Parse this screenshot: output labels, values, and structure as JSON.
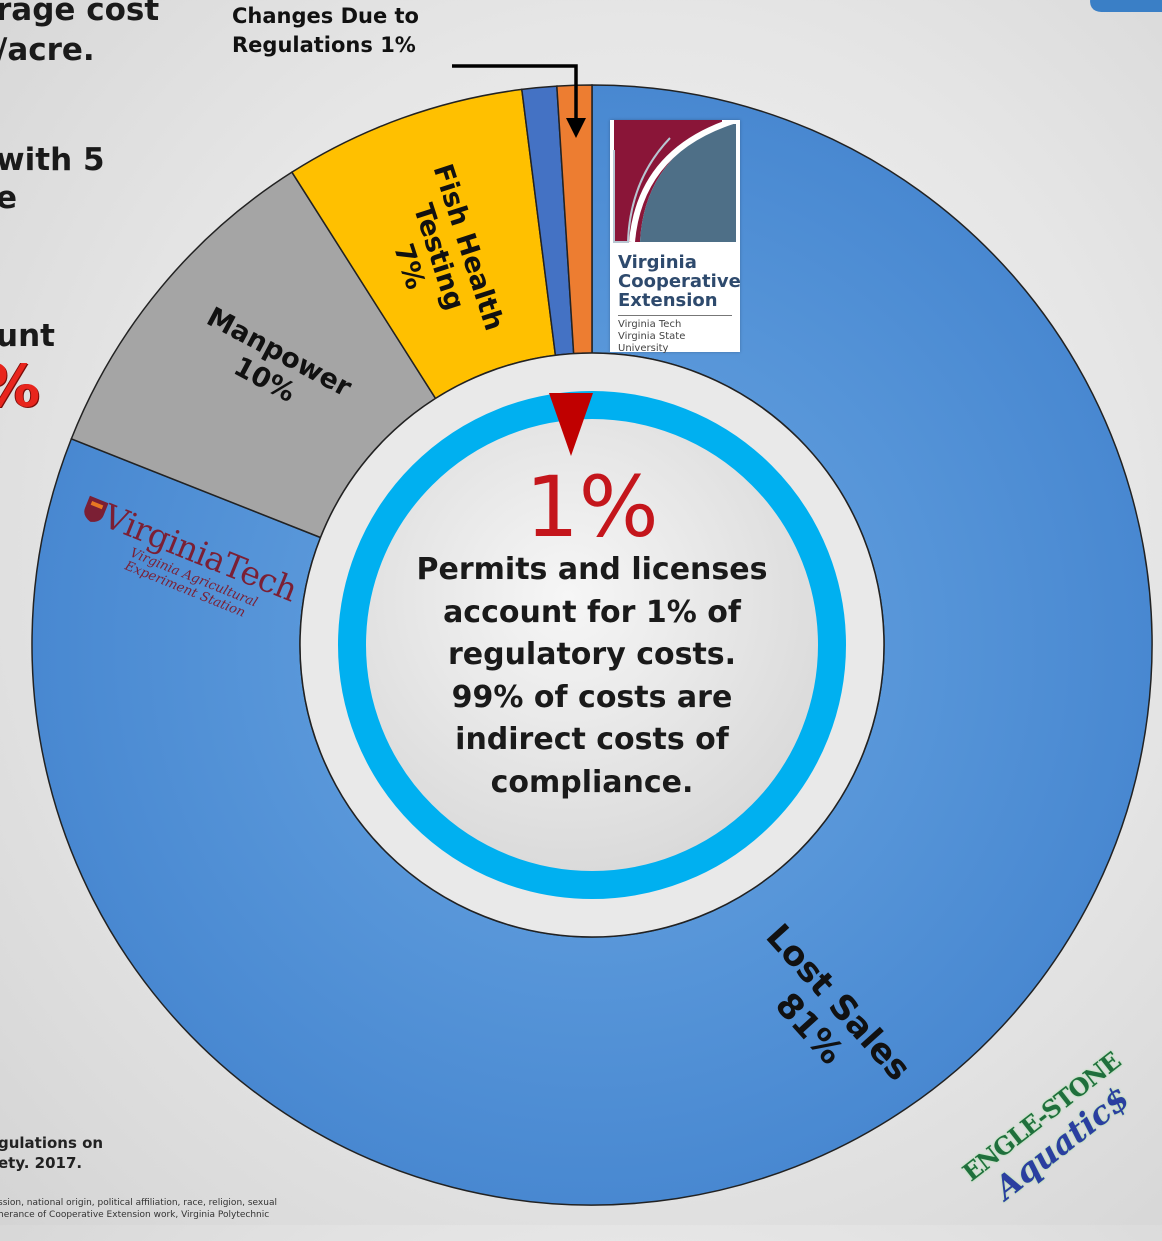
{
  "left_panel": {
    "line1": "rage cost",
    "line2": "/acre.",
    "line3": "with 5",
    "line4": "e",
    "line5": "unt",
    "red_fragment": "%"
  },
  "callout": {
    "line1": "Changes Due to",
    "line2": "Regulations 1%"
  },
  "center": {
    "percent": "1%",
    "lines": [
      "Permits and licenses",
      "account for 1% of",
      "regulatory costs.",
      "99% of costs are",
      "indirect costs of",
      "compliance."
    ]
  },
  "citation": {
    "line1": "gulations on",
    "line2": "ety. 2017."
  },
  "fineprint": {
    "line1": "ssion, national origin, political affiliation, race, religion, sexual",
    "line2": "herance of Cooperative Extension work, Virginia Polytechnic"
  },
  "logos": {
    "vce": {
      "title": [
        "Virginia",
        "Cooperative",
        "Extension"
      ],
      "sub": [
        "Virginia Tech",
        "Virginia State University"
      ]
    },
    "vt": {
      "main": "VirginiaTech",
      "sub": [
        "Virginia Agricultural",
        "Experiment Station"
      ]
    },
    "es": {
      "top": "ENGLE-STONE",
      "bottom": "Aquatic$"
    }
  },
  "chart_data": {
    "type": "pie",
    "donut": true,
    "slices": [
      {
        "label": "Lost Sales",
        "value": 81,
        "pct_label": "81%",
        "color": "#5b98d8"
      },
      {
        "label": "Manpower",
        "value": 10,
        "pct_label": "10%",
        "color": "#a5a5a5"
      },
      {
        "label": "Fish Health Testing",
        "value": 7,
        "pct_label": "7%",
        "color": "#ffc000"
      },
      {
        "label": "",
        "value": 1,
        "pct_label": "",
        "color": "#4472c4"
      },
      {
        "label": "Changes Due to Regulations",
        "value": 1,
        "pct_label": "1%",
        "color": "#ed7d31"
      }
    ],
    "ring_color": "#00b0f0",
    "pointer_color": "#c00000"
  }
}
